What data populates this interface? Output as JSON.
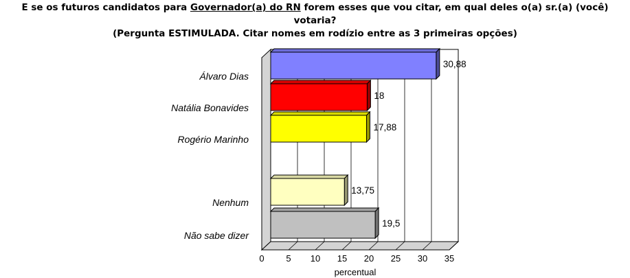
{
  "title": {
    "line1_pre": "E se os futuros candidatos para ",
    "line1_underlined": "Governador(a) do RN",
    "line1_post": " forem esses que vou citar, em qual deles o(a) sr.(a) (você) votaria?",
    "line2": "(Pergunta ESTIMULADA. Citar nomes em rodízio entre as 3 primeiras opções)"
  },
  "chart_data": {
    "type": "bar",
    "orientation": "horizontal",
    "style": "3d",
    "categories": [
      "Álvaro Dias",
      "Natália Bonavides",
      "Rogério Marinho",
      "Nenhum",
      "Não sabe dizer"
    ],
    "values": [
      30.88,
      18,
      17.88,
      13.75,
      19.5
    ],
    "value_labels": [
      "30,88",
      "18",
      "17,88",
      "13,75",
      "19,5"
    ],
    "colors": [
      "#8080ff",
      "#ff0000",
      "#ffff00",
      "#ffffc0",
      "#c0c0c0"
    ],
    "xlim": [
      0,
      35
    ],
    "xticks": [
      0,
      5,
      10,
      15,
      20,
      25,
      30,
      35
    ],
    "xlabel": "percentual",
    "grid": true
  }
}
